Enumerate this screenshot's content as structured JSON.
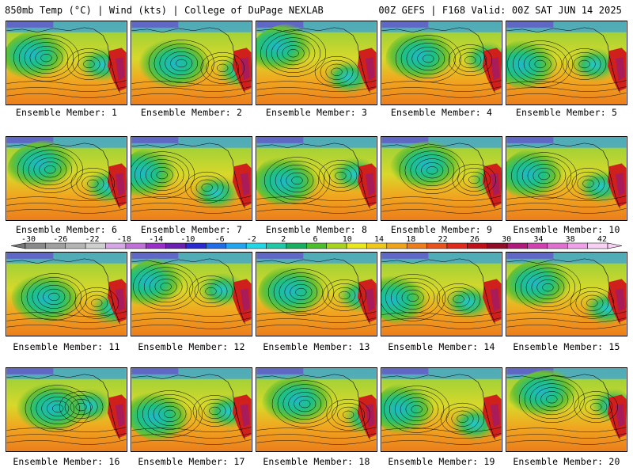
{
  "header": {
    "left": "850mb Temp (°C) | Wind (kts) | College of DuPage NEXLAB",
    "right": "00Z GEFS | F168 Valid: 00Z SAT JUN 14 2025"
  },
  "members": [
    "Ensemble Member: 1",
    "Ensemble Member: 2",
    "Ensemble Member: 3",
    "Ensemble Member: 4",
    "Ensemble Member: 5",
    "Ensemble Member: 6",
    "Ensemble Member: 7",
    "Ensemble Member: 8",
    "Ensemble Member: 9",
    "Ensemble Member: 10",
    "Ensemble Member: 11",
    "Ensemble Member: 12",
    "Ensemble Member: 13",
    "Ensemble Member: 14",
    "Ensemble Member: 15",
    "Ensemble Member: 16",
    "Ensemble Member: 17",
    "Ensemble Member: 18",
    "Ensemble Member: 19",
    "Ensemble Member: 20"
  ],
  "colorbar": {
    "ticks": [
      "-30",
      "-26",
      "-22",
      "-18",
      "-14",
      "-10",
      "-6",
      "-2",
      "2",
      "6",
      "10",
      "14",
      "18",
      "22",
      "26",
      "30",
      "34",
      "38",
      "42"
    ],
    "colors": [
      "#8a8a8a",
      "#a0a0a0",
      "#b5b5b5",
      "#cfcfcf",
      "#d6a6e6",
      "#c070d8",
      "#9a2ec8",
      "#6a1fb0",
      "#2a2ad0",
      "#1f6ee8",
      "#22a6f0",
      "#22d6e6",
      "#20c8a8",
      "#18b060",
      "#4cc02c",
      "#a8d41e",
      "#e8e81c",
      "#f0c81c",
      "#f0a41c",
      "#ec7e1c",
      "#e8521c",
      "#e02a1c",
      "#c0101c",
      "#900c28",
      "#b01a7a",
      "#d040b0",
      "#e070d0",
      "#f0a0e8",
      "#f8d0f4"
    ]
  }
}
